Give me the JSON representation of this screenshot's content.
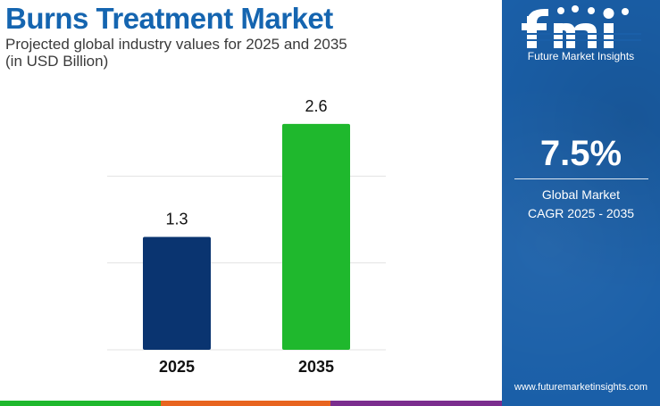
{
  "header": {
    "title": "Burns Treatment Market",
    "subtitle_line1": "Projected global industry values for 2025 and 2035",
    "subtitle_line2": "(in USD Billion)"
  },
  "chart_data": {
    "type": "bar",
    "categories": [
      "2025",
      "2035"
    ],
    "values": [
      1.3,
      2.6
    ],
    "value_labels": [
      "1.3",
      "2.6"
    ],
    "bar_colors": [
      "#0a3470",
      "#1fb82d"
    ],
    "ylim": [
      0,
      3
    ],
    "grid": true,
    "title": "",
    "xlabel": "",
    "ylabel": ""
  },
  "sidebar": {
    "logo_text": "fmi",
    "logo_subtitle": "Future Market Insights",
    "cagr_value": "7.5%",
    "cagr_label_line1": "Global Market",
    "cagr_label_line2": "CAGR 2025 - 2035",
    "website": "www.futuremarketinsights.com",
    "background_color": "#1a5fa8"
  },
  "footer": {
    "strip_colors": [
      "#1fb82d",
      "#e8641f",
      "#7b2d8e"
    ]
  }
}
